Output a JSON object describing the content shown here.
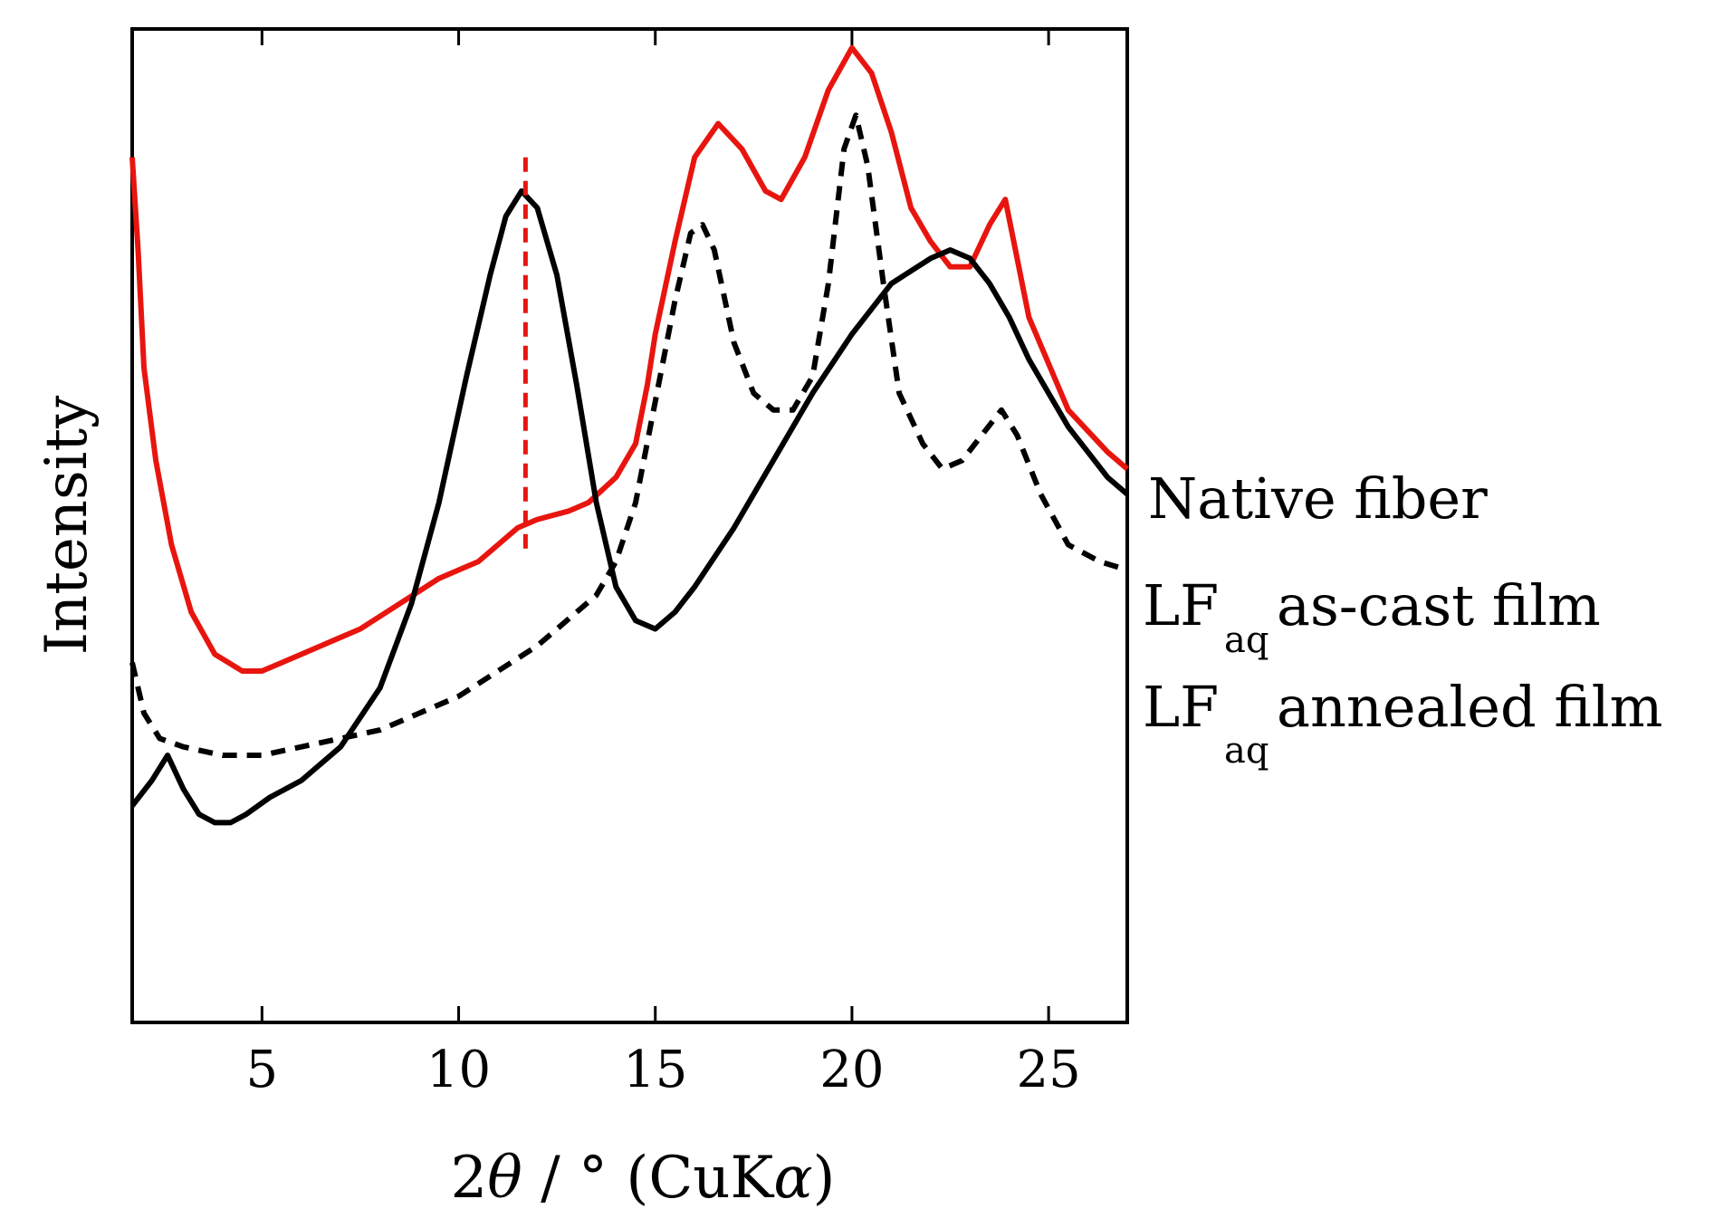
{
  "chart_data": {
    "type": "line",
    "title": "",
    "xlabel": "2θ / ° (CuKα)",
    "xlabel_parts": {
      "prefix": "2",
      "theta": "θ",
      "middle": " / ° (CuK",
      "alpha": "α",
      "suffix": ")"
    },
    "ylabel": "Intensity",
    "xlim": [
      1.7,
      27
    ],
    "ylim": [
      0,
      1
    ],
    "xticks": [
      5,
      10,
      15,
      20,
      25
    ],
    "y_ticks_labeled": false,
    "grid": false,
    "legend_placement": "right, inline next to curve ends",
    "reference_line": {
      "x": 11.7,
      "style": "dashed",
      "color": "#e8150f",
      "y_from": 0.44,
      "y_to": 0.91
    },
    "series": [
      {
        "name": "Native fiber",
        "label_main": "Native fiber",
        "color": "#e8150f",
        "linestyle": "solid",
        "x": [
          1.7,
          1.85,
          2.0,
          2.3,
          2.7,
          3.2,
          3.8,
          4.5,
          5.0,
          5.5,
          6.5,
          7.5,
          8.5,
          9.5,
          10.5,
          11.5,
          12.0,
          12.8,
          13.3,
          14.0,
          14.5,
          14.8,
          15.0,
          15.5,
          16.0,
          16.6,
          17.2,
          17.8,
          18.2,
          18.8,
          19.4,
          20.0,
          20.5,
          21.0,
          21.5,
          22.0,
          22.5,
          23.0,
          23.5,
          23.9,
          24.5,
          25.5,
          26.5,
          27.0
        ],
        "y": [
          0.91,
          0.8,
          0.66,
          0.55,
          0.45,
          0.37,
          0.32,
          0.3,
          0.3,
          0.31,
          0.33,
          0.35,
          0.38,
          0.41,
          0.43,
          0.47,
          0.48,
          0.49,
          0.5,
          0.53,
          0.57,
          0.64,
          0.7,
          0.81,
          0.91,
          0.95,
          0.92,
          0.87,
          0.86,
          0.91,
          0.99,
          1.04,
          1.01,
          0.94,
          0.85,
          0.81,
          0.78,
          0.78,
          0.83,
          0.86,
          0.72,
          0.61,
          0.56,
          0.54
        ]
      },
      {
        "name": "LFaq as-cast film",
        "label_main": "LF",
        "label_sub": "aq",
        "label_rest": " as-cast film",
        "color": "#000000",
        "linestyle": "solid",
        "x": [
          1.7,
          2.2,
          2.6,
          3.0,
          3.4,
          3.8,
          4.2,
          4.6,
          5.2,
          6.0,
          7.0,
          8.0,
          8.8,
          9.5,
          10.2,
          10.8,
          11.2,
          11.6,
          12.0,
          12.5,
          13.0,
          13.5,
          14.0,
          14.5,
          15.0,
          15.5,
          16.0,
          17.0,
          18.0,
          19.0,
          20.0,
          21.0,
          22.0,
          22.5,
          23.0,
          23.5,
          24.0,
          24.5,
          25.0,
          25.5,
          26.0,
          26.5,
          27.0
        ],
        "y": [
          0.14,
          0.17,
          0.2,
          0.16,
          0.13,
          0.12,
          0.12,
          0.13,
          0.15,
          0.17,
          0.21,
          0.28,
          0.38,
          0.5,
          0.65,
          0.77,
          0.84,
          0.87,
          0.85,
          0.77,
          0.64,
          0.5,
          0.4,
          0.36,
          0.35,
          0.37,
          0.4,
          0.47,
          0.55,
          0.63,
          0.7,
          0.76,
          0.79,
          0.8,
          0.79,
          0.76,
          0.72,
          0.67,
          0.63,
          0.59,
          0.56,
          0.53,
          0.51
        ]
      },
      {
        "name": "LFaq annealed film",
        "label_main": "LF",
        "label_sub": "aq",
        "label_rest": " annealed film",
        "color": "#000000",
        "linestyle": "dashed",
        "x": [
          1.7,
          2.0,
          2.4,
          3.0,
          4.0,
          5.0,
          6.0,
          7.0,
          8.0,
          9.0,
          10.0,
          11.0,
          12.0,
          13.0,
          13.5,
          14.0,
          14.5,
          15.0,
          15.5,
          15.9,
          16.2,
          16.5,
          17.0,
          17.5,
          18.0,
          18.5,
          19.0,
          19.4,
          19.8,
          20.1,
          20.4,
          20.8,
          21.2,
          21.8,
          22.3,
          22.8,
          23.3,
          23.8,
          24.2,
          24.8,
          25.5,
          26.3,
          27.0
        ],
        "y": [
          0.31,
          0.25,
          0.22,
          0.21,
          0.2,
          0.2,
          0.21,
          0.22,
          0.23,
          0.25,
          0.27,
          0.3,
          0.33,
          0.37,
          0.39,
          0.43,
          0.5,
          0.62,
          0.74,
          0.82,
          0.83,
          0.8,
          0.69,
          0.63,
          0.61,
          0.61,
          0.65,
          0.76,
          0.92,
          0.96,
          0.9,
          0.76,
          0.63,
          0.57,
          0.54,
          0.55,
          0.58,
          0.61,
          0.58,
          0.51,
          0.45,
          0.43,
          0.42
        ]
      }
    ]
  }
}
